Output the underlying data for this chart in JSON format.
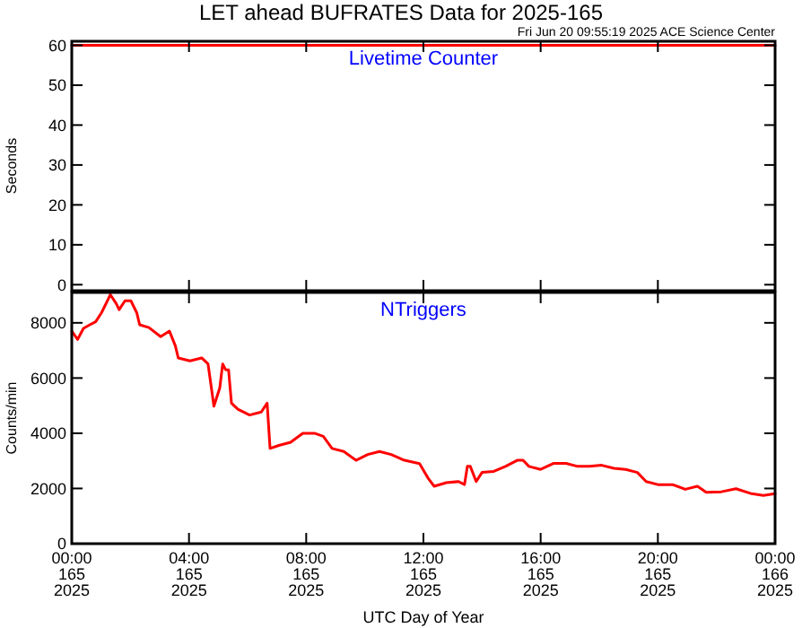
{
  "chart_data": [
    {
      "type": "line",
      "title": "LET ahead BUFRATES Data for 2025-165",
      "subtitle": "Fri Jun 20 09:55:19 2025 ACE Science Center",
      "ylabel": "Seconds",
      "annotations": [
        "Livetime Counter"
      ],
      "xlim": [
        "2025-06-14T00:00",
        "2025-06-15T00:00"
      ],
      "xticks": [
        {
          "value": "2025-06-14T00:00",
          "label": null
        },
        {
          "value": "2025-06-14T04:00",
          "label": null
        },
        {
          "value": "2025-06-14T08:00",
          "label": null
        },
        {
          "value": "2025-06-14T12:00",
          "label": null
        },
        {
          "value": "2025-06-14T16:00",
          "label": null
        },
        {
          "value": "2025-06-14T20:00",
          "label": null
        },
        {
          "value": "2025-06-15T00:00",
          "label": null
        }
      ],
      "ylim": [
        -1.5,
        61
      ],
      "yticks": [
        0,
        10,
        20,
        30,
        40,
        50,
        60
      ],
      "tick_labels": "y",
      "series": [
        {
          "color": "#ff0000",
          "x": [
            "2025-06-14T00:00",
            "2025-06-15T00:00"
          ],
          "values": [
            60,
            60
          ]
        }
      ]
    },
    {
      "type": "line",
      "xlabel": "UTC Day of Year",
      "ylabel": "Counts/min",
      "annotations": [
        "NTriggers"
      ],
      "xlim": [
        "2025-06-14T00:00",
        "2025-06-15T00:00"
      ],
      "xticks": [
        {
          "value": "2025-06-14T00:00",
          "label": "00:00\n165\n2025"
        },
        {
          "value": "2025-06-14T04:00",
          "label": "04:00\n165\n2025"
        },
        {
          "value": "2025-06-14T08:00",
          "label": "08:00\n165\n2025"
        },
        {
          "value": "2025-06-14T12:00",
          "label": "12:00\n165\n2025"
        },
        {
          "value": "2025-06-14T16:00",
          "label": "16:00\n165\n2025"
        },
        {
          "value": "2025-06-14T20:00",
          "label": "20:00\n165\n2025"
        },
        {
          "value": "2025-06-15T00:00",
          "label": "00:00\n166\n2025"
        }
      ],
      "ylim": [
        0,
        9100
      ],
      "yticks": [
        0,
        2000,
        4000,
        6000,
        8000
      ],
      "series": [
        {
          "color": "#ff0000",
          "x": [
            "2025-06-14T00:00",
            "2025-06-14T00:12",
            "2025-06-14T00:24",
            "2025-06-14T00:37",
            "2025-06-14T00:49",
            "2025-06-14T01:01",
            "2025-06-14T01:13",
            "2025-06-14T01:19",
            "2025-06-14T01:31",
            "2025-06-14T01:37",
            "2025-06-14T01:49",
            "2025-06-14T02:01",
            "2025-06-14T02:13",
            "2025-06-14T02:19",
            "2025-06-14T02:38",
            "2025-06-14T03:02",
            "2025-06-14T03:20",
            "2025-06-14T03:32",
            "2025-06-14T03:38",
            "2025-06-14T04:02",
            "2025-06-14T04:26",
            "2025-06-14T04:39",
            "2025-06-14T04:45",
            "2025-06-14T04:51",
            "2025-06-14T05:03",
            "2025-06-14T05:09",
            "2025-06-14T05:15",
            "2025-06-14T05:21",
            "2025-06-14T05:27",
            "2025-06-14T05:40",
            "2025-06-14T06:04",
            "2025-06-14T06:28",
            "2025-06-14T06:40",
            "2025-06-14T06:46",
            "2025-06-14T07:04",
            "2025-06-14T07:28",
            "2025-06-14T07:53",
            "2025-06-14T08:17",
            "2025-06-14T08:35",
            "2025-06-14T08:53",
            "2025-06-14T09:17",
            "2025-06-14T09:42",
            "2025-06-14T10:06",
            "2025-06-14T10:30",
            "2025-06-14T10:54",
            "2025-06-14T11:21",
            "2025-06-14T11:52",
            "2025-06-14T12:10",
            "2025-06-14T12:22",
            "2025-06-14T12:47",
            "2025-06-14T13:12",
            "2025-06-14T13:24",
            "2025-06-14T13:30",
            "2025-06-14T13:36",
            "2025-06-14T13:48",
            "2025-06-14T14:00",
            "2025-06-14T14:24",
            "2025-06-14T14:48",
            "2025-06-14T15:12",
            "2025-06-14T15:24",
            "2025-06-14T15:36",
            "2025-06-14T16:00",
            "2025-06-14T16:27",
            "2025-06-14T16:52",
            "2025-06-14T17:16",
            "2025-06-14T17:40",
            "2025-06-14T18:05",
            "2025-06-14T18:30",
            "2025-06-14T18:54",
            "2025-06-14T19:18",
            "2025-06-14T19:36",
            "2025-06-14T20:00",
            "2025-06-14T20:30",
            "2025-06-14T20:56",
            "2025-06-14T21:21",
            "2025-06-14T21:39",
            "2025-06-14T22:10",
            "2025-06-14T22:40",
            "2025-06-14T23:12",
            "2025-06-14T23:36",
            "2025-06-15T00:00"
          ],
          "values": [
            7700,
            7400,
            7800,
            7930,
            8040,
            8370,
            8800,
            9020,
            8700,
            8480,
            8800,
            8800,
            8370,
            7930,
            7830,
            7500,
            7700,
            7170,
            6730,
            6620,
            6730,
            6510,
            5750,
            4980,
            5640,
            6510,
            6300,
            6300,
            5090,
            4870,
            4660,
            4770,
            5090,
            3450,
            3560,
            3670,
            4000,
            4000,
            3890,
            3450,
            3340,
            3020,
            3230,
            3340,
            3230,
            3020,
            2900,
            2360,
            2080,
            2210,
            2250,
            2140,
            2800,
            2800,
            2250,
            2580,
            2620,
            2800,
            3020,
            3020,
            2800,
            2690,
            2910,
            2910,
            2800,
            2800,
            2840,
            2730,
            2690,
            2580,
            2250,
            2140,
            2140,
            1970,
            2080,
            1860,
            1880,
            1990,
            1810,
            1750,
            1810
          ]
        }
      ]
    }
  ]
}
